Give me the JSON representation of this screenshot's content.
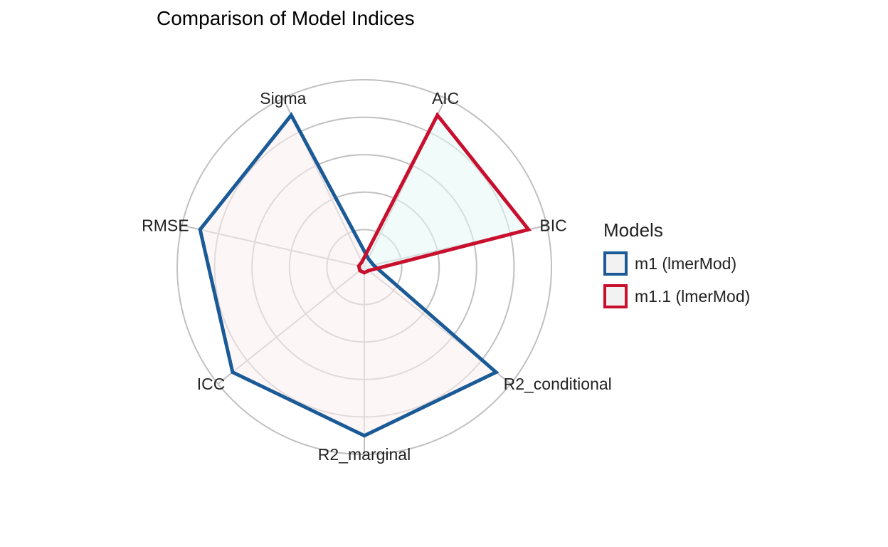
{
  "chart_data": {
    "type": "radar",
    "title": "Comparison of Model Indices",
    "axes": [
      "AIC",
      "BIC",
      "R2_conditional",
      "R2_marginal",
      "ICC",
      "RMSE",
      "Sigma"
    ],
    "rlim": [
      0,
      1
    ],
    "grid_levels": [
      0,
      0.2,
      0.4,
      0.6,
      0.8,
      1.0
    ],
    "grid": true,
    "legend_title": "Models",
    "legend_position": "right",
    "series": [
      {
        "name": "m1 (lmerMod)",
        "color": "#1a5a96",
        "fill": "#fbeeee",
        "values": [
          0.05,
          0.05,
          0.9,
          0.9,
          0.9,
          0.9,
          0.9
        ]
      },
      {
        "name": "m1.1 (lmerMod)",
        "color": "#c8102e",
        "fill": "#e5f7f5",
        "values": [
          0.9,
          0.9,
          0.03,
          0.03,
          0.03,
          0.03,
          0.03
        ]
      }
    ]
  }
}
